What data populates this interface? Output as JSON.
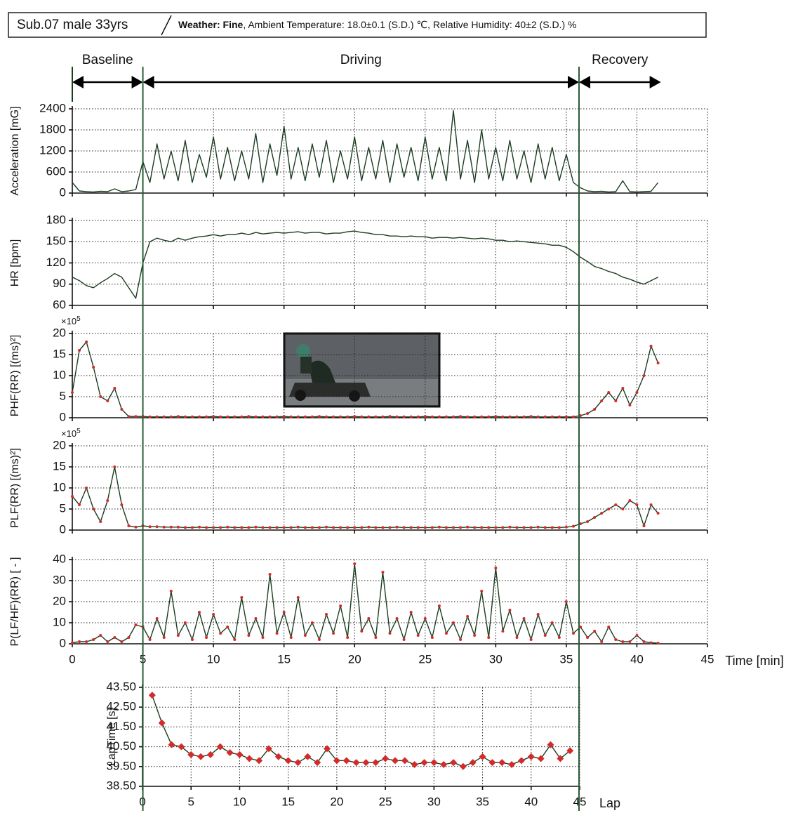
{
  "header": {
    "subject": "Sub.07 male 33yrs",
    "weather": "Weather: Fine",
    "conditions": ", Ambient Temperature: 18.0±0.1 (S.D.) ℃, Relative Humidity: 40±2 (S.D.) %"
  },
  "phases": [
    {
      "label": "Baseline",
      "start": 0,
      "end": 5
    },
    {
      "label": "Driving",
      "start": 5,
      "end": 35.9
    },
    {
      "label": "Recovery",
      "start": 35.9,
      "end": 41.7
    }
  ],
  "chart_data": [
    {
      "type": "line",
      "ylabel": "Acceleration [mG]",
      "xlim": [
        0,
        45
      ],
      "ylim": [
        0,
        2400
      ],
      "yticks": [
        0,
        600,
        1200,
        1800,
        2400
      ],
      "grid": true,
      "color": "#1b3d20",
      "x": [
        0,
        0.5,
        1,
        1.5,
        2,
        2.5,
        3,
        3.5,
        4,
        4.5,
        5,
        5.5,
        6,
        6.5,
        7,
        7.5,
        8,
        8.5,
        9,
        9.5,
        10,
        10.5,
        11,
        11.5,
        12,
        12.5,
        13,
        13.5,
        14,
        14.5,
        15,
        15.5,
        16,
        16.5,
        17,
        17.5,
        18,
        18.5,
        19,
        19.5,
        20,
        20.5,
        21,
        21.5,
        22,
        22.5,
        23,
        23.5,
        24,
        24.5,
        25,
        25.5,
        26,
        26.5,
        27,
        27.5,
        28,
        28.5,
        29,
        29.5,
        30,
        30.5,
        31,
        31.5,
        32,
        32.5,
        33,
        33.5,
        34,
        34.5,
        35,
        35.5,
        36,
        36.5,
        37,
        37.5,
        38,
        38.5,
        39,
        39.5,
        40,
        40.5,
        41,
        41.5
      ],
      "values": [
        300,
        60,
        40,
        30,
        50,
        40,
        120,
        40,
        60,
        100,
        900,
        300,
        1400,
        400,
        1200,
        350,
        1500,
        300,
        1100,
        450,
        1600,
        400,
        1300,
        350,
        1200,
        400,
        1700,
        300,
        1400,
        500,
        1900,
        400,
        1300,
        350,
        1400,
        450,
        1500,
        300,
        1200,
        400,
        1600,
        350,
        1300,
        400,
        1500,
        300,
        1400,
        450,
        1300,
        350,
        1600,
        400,
        1300,
        350,
        2350,
        400,
        1500,
        300,
        1800,
        400,
        1300,
        350,
        1500,
        400,
        1200,
        300,
        1400,
        400,
        1300,
        350,
        1100,
        300,
        150,
        60,
        40,
        50,
        30,
        40,
        350,
        40,
        30,
        40,
        50,
        300
      ]
    },
    {
      "type": "line",
      "ylabel": "HR [bpm]",
      "xlim": [
        0,
        45
      ],
      "ylim": [
        60,
        180
      ],
      "yticks": [
        60,
        90,
        120,
        150,
        180
      ],
      "grid": true,
      "color": "#1b3d20",
      "x": [
        0,
        0.5,
        1,
        1.5,
        2,
        2.5,
        3,
        3.5,
        4,
        4.5,
        5,
        5.5,
        6,
        6.5,
        7,
        7.5,
        8,
        8.5,
        9,
        9.5,
        10,
        10.5,
        11,
        11.5,
        12,
        12.5,
        13,
        13.5,
        14,
        14.5,
        15,
        15.5,
        16,
        16.5,
        17,
        17.5,
        18,
        18.5,
        19,
        19.5,
        20,
        20.5,
        21,
        21.5,
        22,
        22.5,
        23,
        23.5,
        24,
        24.5,
        25,
        25.5,
        26,
        26.5,
        27,
        27.5,
        28,
        28.5,
        29,
        29.5,
        30,
        30.5,
        31,
        31.5,
        32,
        32.5,
        33,
        33.5,
        34,
        34.5,
        35,
        35.5,
        36,
        36.5,
        37,
        37.5,
        38,
        38.5,
        39,
        39.5,
        40,
        40.5,
        41,
        41.5
      ],
      "values": [
        100,
        95,
        88,
        85,
        92,
        98,
        105,
        100,
        85,
        70,
        120,
        150,
        155,
        152,
        150,
        155,
        152,
        155,
        157,
        158,
        160,
        158,
        160,
        160,
        162,
        160,
        163,
        161,
        162,
        163,
        162,
        163,
        164,
        162,
        163,
        163,
        161,
        162,
        162,
        164,
        165,
        163,
        162,
        160,
        160,
        158,
        158,
        157,
        158,
        157,
        157,
        155,
        156,
        156,
        155,
        156,
        155,
        154,
        155,
        154,
        152,
        152,
        150,
        151,
        150,
        149,
        148,
        147,
        145,
        145,
        142,
        136,
        128,
        122,
        115,
        112,
        108,
        105,
        100,
        97,
        93,
        90,
        95,
        100
      ]
    },
    {
      "type": "line",
      "ylabel": "PHF(RR) [(ms)²]",
      "multiplier": "×10",
      "multiplier_exp": "5",
      "xlim": [
        0,
        45
      ],
      "ylim": [
        0,
        20
      ],
      "yticks": [
        0,
        5,
        10,
        15,
        20
      ],
      "grid": true,
      "color": "#1b3d20",
      "marker": "circle",
      "marker_color": "#d42a2a",
      "x": [
        0,
        0.5,
        1,
        1.5,
        2,
        2.5,
        3,
        3.5,
        4,
        4.5,
        5,
        5.5,
        6,
        6.5,
        7,
        7.5,
        8,
        8.5,
        9,
        9.5,
        10,
        10.5,
        11,
        11.5,
        12,
        12.5,
        13,
        13.5,
        14,
        14.5,
        15,
        15.5,
        16,
        16.5,
        17,
        17.5,
        18,
        18.5,
        19,
        19.5,
        20,
        20.5,
        21,
        21.5,
        22,
        22.5,
        23,
        23.5,
        24,
        24.5,
        25,
        25.5,
        26,
        26.5,
        27,
        27.5,
        28,
        28.5,
        29,
        29.5,
        30,
        30.5,
        31,
        31.5,
        32,
        32.5,
        33,
        33.5,
        34,
        34.5,
        35,
        35.5,
        36,
        36.5,
        37,
        37.5,
        38,
        38.5,
        39,
        39.5,
        40,
        40.5,
        41,
        41.5
      ],
      "values": [
        6,
        16,
        18,
        12,
        5,
        4,
        7,
        2,
        0.3,
        0.3,
        0.3,
        0.2,
        0.2,
        0.2,
        0.2,
        0.3,
        0.2,
        0.2,
        0.2,
        0.2,
        0.3,
        0.2,
        0.2,
        0.2,
        0.2,
        0.3,
        0.2,
        0.2,
        0.2,
        0.2,
        0.3,
        0.2,
        0.2,
        0.2,
        0.2,
        0.3,
        0.2,
        0.2,
        0.2,
        0.2,
        0.3,
        0.2,
        0.2,
        0.2,
        0.2,
        0.3,
        0.2,
        0.2,
        0.2,
        0.2,
        0.3,
        0.2,
        0.2,
        0.2,
        0.2,
        0.3,
        0.2,
        0.2,
        0.2,
        0.2,
        0.3,
        0.2,
        0.2,
        0.2,
        0.2,
        0.3,
        0.2,
        0.2,
        0.2,
        0.2,
        0.2,
        0.2,
        0.5,
        1,
        2,
        4,
        6,
        4,
        7,
        3,
        6,
        10,
        17,
        13
      ]
    },
    {
      "type": "line",
      "ylabel": "PLF(RR) [(ms)²]",
      "multiplier": "×10",
      "multiplier_exp": "5",
      "xlim": [
        0,
        45
      ],
      "ylim": [
        0,
        20
      ],
      "yticks": [
        0,
        5,
        10,
        15,
        20
      ],
      "grid": true,
      "color": "#1b3d20",
      "marker": "circle",
      "marker_color": "#d42a2a",
      "x": [
        0,
        0.5,
        1,
        1.5,
        2,
        2.5,
        3,
        3.5,
        4,
        4.5,
        5,
        5.5,
        6,
        6.5,
        7,
        7.5,
        8,
        8.5,
        9,
        9.5,
        10,
        10.5,
        11,
        11.5,
        12,
        12.5,
        13,
        13.5,
        14,
        14.5,
        15,
        15.5,
        16,
        16.5,
        17,
        17.5,
        18,
        18.5,
        19,
        19.5,
        20,
        20.5,
        21,
        21.5,
        22,
        22.5,
        23,
        23.5,
        24,
        24.5,
        25,
        25.5,
        26,
        26.5,
        27,
        27.5,
        28,
        28.5,
        29,
        29.5,
        30,
        30.5,
        31,
        31.5,
        32,
        32.5,
        33,
        33.5,
        34,
        34.5,
        35,
        35.5,
        36,
        36.5,
        37,
        37.5,
        38,
        38.5,
        39,
        39.5,
        40,
        40.5,
        41,
        41.5
      ],
      "values": [
        8,
        6,
        10,
        5,
        2,
        7,
        15,
        6,
        1,
        0.7,
        1,
        0.8,
        0.8,
        0.7,
        0.7,
        0.7,
        0.6,
        0.6,
        0.7,
        0.6,
        0.6,
        0.6,
        0.7,
        0.6,
        0.6,
        0.6,
        0.7,
        0.6,
        0.6,
        0.6,
        0.6,
        0.6,
        0.7,
        0.6,
        0.6,
        0.6,
        0.7,
        0.6,
        0.6,
        0.6,
        0.6,
        0.6,
        0.7,
        0.6,
        0.6,
        0.6,
        0.7,
        0.6,
        0.6,
        0.6,
        0.6,
        0.6,
        0.7,
        0.6,
        0.6,
        0.6,
        0.7,
        0.6,
        0.6,
        0.6,
        0.6,
        0.6,
        0.7,
        0.6,
        0.6,
        0.6,
        0.7,
        0.6,
        0.6,
        0.6,
        0.7,
        0.9,
        1.5,
        2,
        3,
        4,
        5,
        6,
        5,
        7,
        6,
        1,
        6,
        4
      ]
    },
    {
      "type": "line",
      "ylabel": "P(LF/HF)(RR) [ - ]",
      "xlabel": "Time [min]",
      "xlim": [
        0,
        45
      ],
      "xticks": [
        0,
        5,
        10,
        15,
        20,
        25,
        30,
        35,
        40,
        45
      ],
      "ylim": [
        0,
        40
      ],
      "yticks": [
        0,
        10,
        20,
        30,
        40
      ],
      "grid": true,
      "color": "#1b3d20",
      "marker": "circle",
      "marker_color": "#d42a2a",
      "x": [
        0,
        0.5,
        1,
        1.5,
        2,
        2.5,
        3,
        3.5,
        4,
        4.5,
        5,
        5.5,
        6,
        6.5,
        7,
        7.5,
        8,
        8.5,
        9,
        9.5,
        10,
        10.5,
        11,
        11.5,
        12,
        12.5,
        13,
        13.5,
        14,
        14.5,
        15,
        15.5,
        16,
        16.5,
        17,
        17.5,
        18,
        18.5,
        19,
        19.5,
        20,
        20.5,
        21,
        21.5,
        22,
        22.5,
        23,
        23.5,
        24,
        24.5,
        25,
        25.5,
        26,
        26.5,
        27,
        27.5,
        28,
        28.5,
        29,
        29.5,
        30,
        30.5,
        31,
        31.5,
        32,
        32.5,
        33,
        33.5,
        34,
        34.5,
        35,
        35.5,
        36,
        36.5,
        37,
        37.5,
        38,
        38.5,
        39,
        39.5,
        40,
        40.5,
        41,
        41.5
      ],
      "values": [
        0.5,
        1,
        1,
        2,
        4,
        1,
        3,
        1,
        3,
        9,
        8,
        2,
        12,
        3,
        25,
        4,
        10,
        2,
        15,
        3,
        14,
        5,
        8,
        2,
        22,
        4,
        12,
        3,
        33,
        5,
        15,
        3,
        22,
        4,
        10,
        2,
        14,
        5,
        18,
        3,
        38,
        6,
        12,
        3,
        34,
        5,
        12,
        2,
        15,
        4,
        12,
        3,
        18,
        5,
        10,
        2,
        13,
        4,
        25,
        3,
        36,
        6,
        16,
        3,
        12,
        2,
        14,
        4,
        10,
        3,
        20,
        5,
        8,
        3,
        6,
        1,
        8,
        2,
        1,
        1,
        4,
        1,
        0.5,
        0.3
      ]
    },
    {
      "type": "line",
      "ylabel": "LapTime [s]",
      "xlabel": "Lap",
      "xlim": [
        0,
        45
      ],
      "xticks": [
        0,
        5,
        10,
        15,
        20,
        25,
        30,
        35,
        40,
        45
      ],
      "ylim": [
        38.5,
        43.5
      ],
      "yticks": [
        {
          "value": 38.5,
          "label": "38.50"
        },
        {
          "value": 39.5,
          "label": "39.50"
        },
        {
          "value": 40.5,
          "label": "40.50"
        },
        {
          "value": 41.5,
          "label": "41.50"
        },
        {
          "value": 42.5,
          "label": "42.50"
        },
        {
          "value": 43.5,
          "label": "43.50"
        }
      ],
      "grid": true,
      "color": "#1b3d20",
      "marker": "diamond",
      "marker_color": "#d42a2a",
      "x": [
        1,
        2,
        3,
        4,
        5,
        6,
        7,
        8,
        9,
        10,
        11,
        12,
        13,
        14,
        15,
        16,
        17,
        18,
        19,
        20,
        21,
        22,
        23,
        24,
        25,
        26,
        27,
        28,
        29,
        30,
        31,
        32,
        33,
        34,
        35,
        36,
        37,
        38,
        39,
        40,
        41,
        42,
        43,
        44
      ],
      "values": [
        43.1,
        41.7,
        40.6,
        40.5,
        40.1,
        40.0,
        40.1,
        40.5,
        40.2,
        40.1,
        39.9,
        39.8,
        40.4,
        40.0,
        39.8,
        39.7,
        40.0,
        39.7,
        40.4,
        39.8,
        39.8,
        39.7,
        39.7,
        39.7,
        39.9,
        39.8,
        39.8,
        39.6,
        39.7,
        39.7,
        39.6,
        39.7,
        39.5,
        39.7,
        40.0,
        39.7,
        39.7,
        39.6,
        39.8,
        40.0,
        39.9,
        40.6,
        39.9,
        40.3
      ]
    }
  ]
}
